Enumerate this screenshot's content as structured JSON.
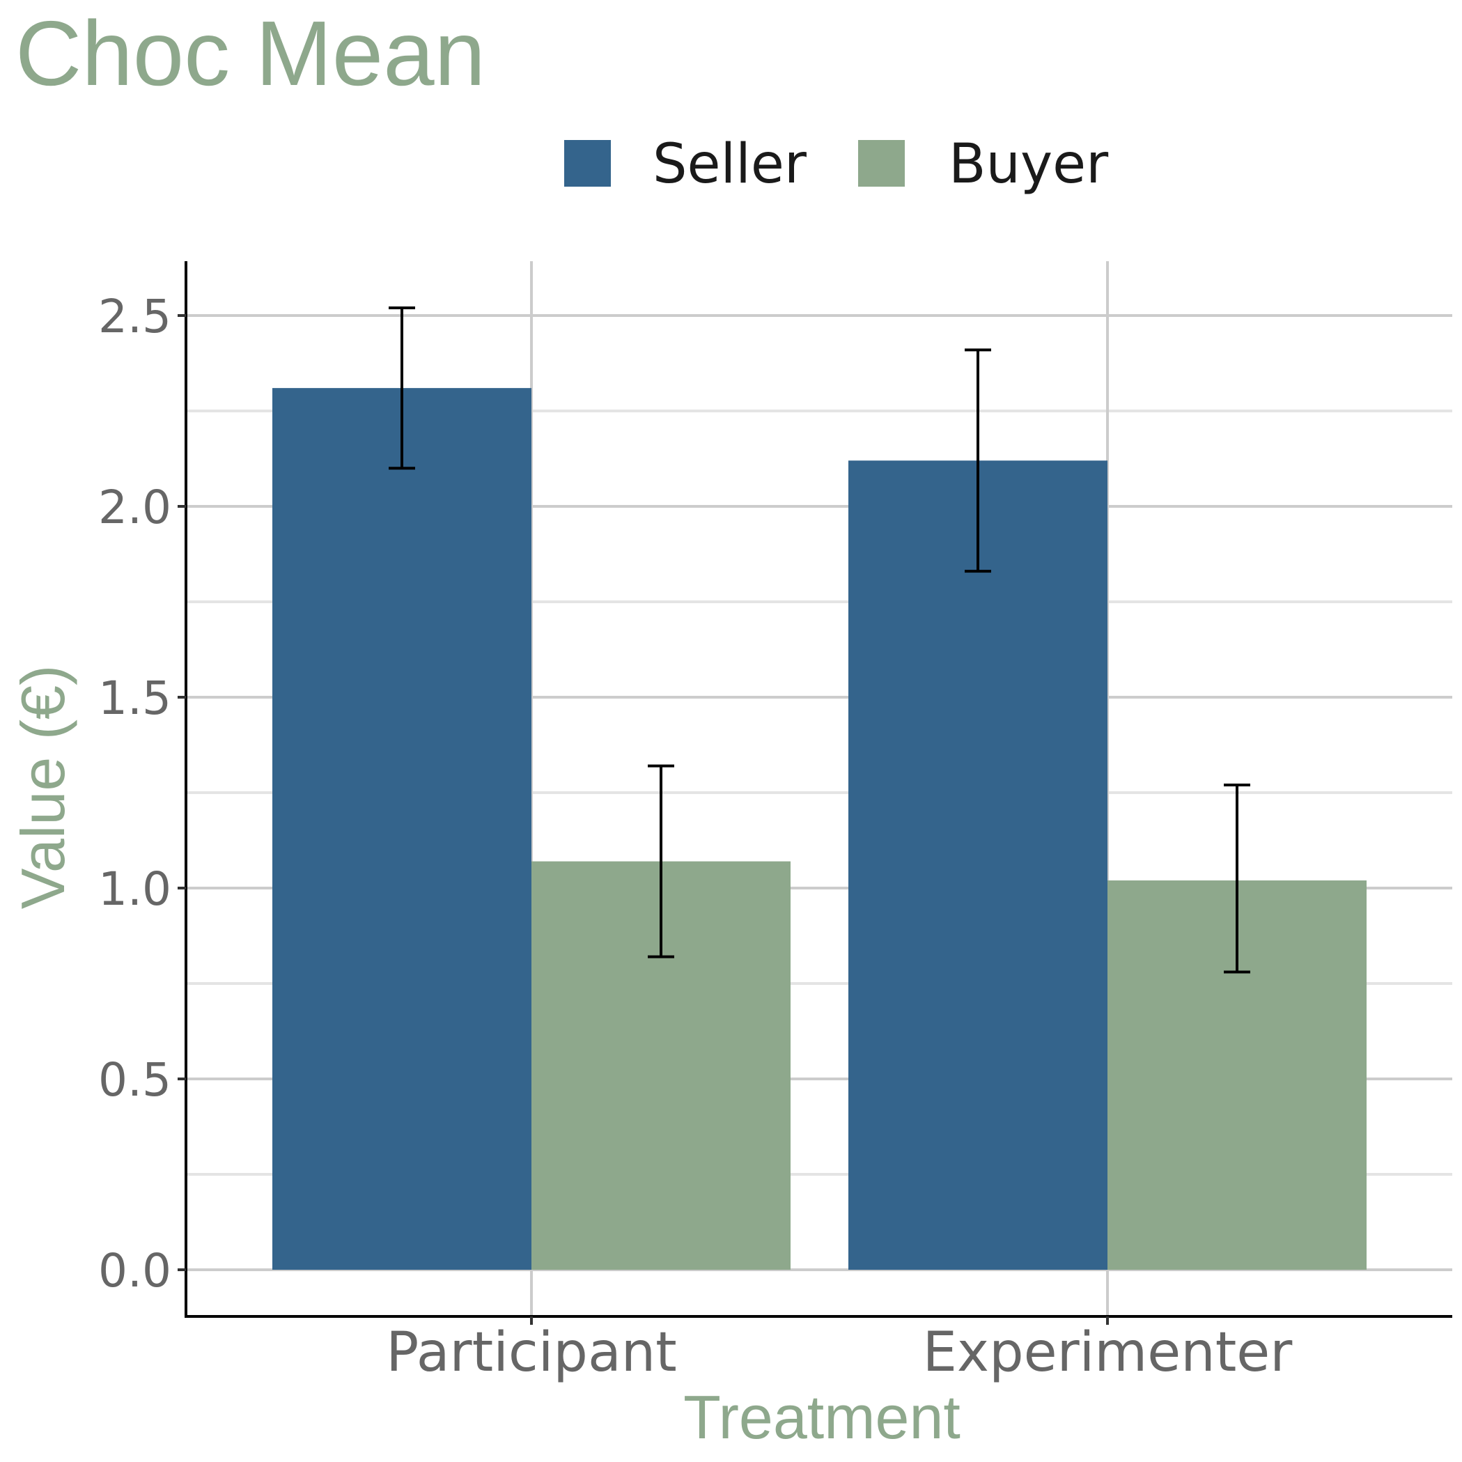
{
  "chart_data": {
    "type": "bar",
    "title": "Choc Mean",
    "xlabel": "Treatment",
    "ylabel": "Value (€)",
    "categories": [
      "Participant",
      "Experimenter"
    ],
    "series": [
      {
        "name": "Seller",
        "color": "#34648c",
        "values": [
          2.31,
          2.12
        ],
        "error_low": [
          2.1,
          1.83
        ],
        "error_high": [
          2.52,
          2.41
        ]
      },
      {
        "name": "Buyer",
        "color": "#8ea88c",
        "values": [
          1.07,
          1.02
        ],
        "error_low": [
          0.82,
          0.78
        ],
        "error_high": [
          1.32,
          1.27
        ]
      }
    ],
    "ylim": [
      -0.12,
      2.65
    ],
    "yticks": [
      "0.0",
      "0.5",
      "1.0",
      "1.5",
      "2.0",
      "2.5"
    ],
    "ytick_values": [
      0,
      0.5,
      1.0,
      1.5,
      2.0,
      2.5
    ],
    "minor_gridlines": [
      0.25,
      0.75,
      1.25,
      1.75,
      2.25
    ],
    "grid": true,
    "legend_position": "top"
  }
}
